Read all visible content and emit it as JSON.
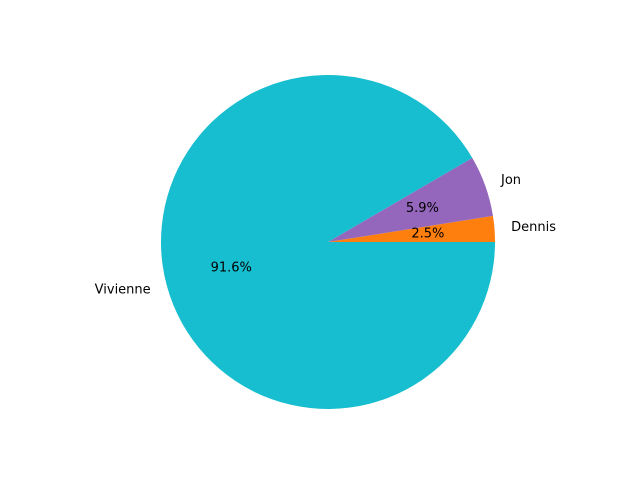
{
  "chart_data": {
    "type": "pie",
    "title": "",
    "slices": [
      {
        "label": "Dennis",
        "value": 2.5,
        "pct_label": "2.5%",
        "color": "#ff7f0e"
      },
      {
        "label": "Jon",
        "value": 5.9,
        "pct_label": "5.9%",
        "color": "#9467bd"
      },
      {
        "label": "Vivienne",
        "value": 91.6,
        "pct_label": "91.6%",
        "color": "#17becf"
      }
    ],
    "start_angle_deg": 0,
    "direction": "counterclockwise"
  }
}
